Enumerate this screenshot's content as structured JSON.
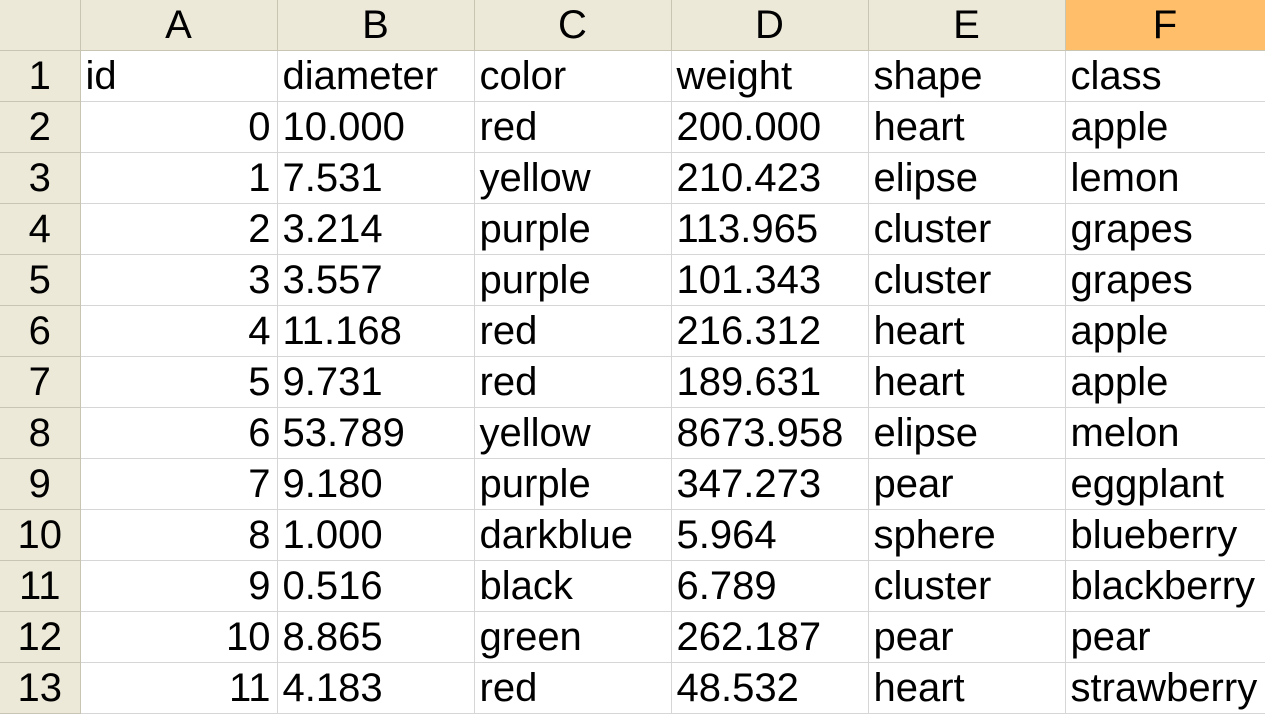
{
  "columns": [
    "A",
    "B",
    "C",
    "D",
    "E",
    "F"
  ],
  "active_column": "F",
  "rows": [
    {
      "n": "1",
      "cells": [
        "id",
        "diameter",
        "color",
        "weight",
        "shape",
        "class"
      ]
    },
    {
      "n": "2",
      "cells": [
        "0",
        "10.000",
        "red",
        "200.000",
        "heart",
        "apple"
      ]
    },
    {
      "n": "3",
      "cells": [
        "1",
        "7.531",
        "yellow",
        "210.423",
        "elipse",
        "lemon"
      ]
    },
    {
      "n": "4",
      "cells": [
        "2",
        "3.214",
        "purple",
        "113.965",
        "cluster",
        "grapes"
      ]
    },
    {
      "n": "5",
      "cells": [
        "3",
        "3.557",
        "purple",
        "101.343",
        "cluster",
        "grapes"
      ]
    },
    {
      "n": "6",
      "cells": [
        "4",
        "11.168",
        "red",
        "216.312",
        "heart",
        "apple"
      ]
    },
    {
      "n": "7",
      "cells": [
        "5",
        "9.731",
        "red",
        "189.631",
        "heart",
        "apple"
      ]
    },
    {
      "n": "8",
      "cells": [
        "6",
        "53.789",
        "yellow",
        "8673.958",
        "elipse",
        "melon"
      ]
    },
    {
      "n": "9",
      "cells": [
        "7",
        "9.180",
        "purple",
        "347.273",
        "pear",
        "eggplant"
      ]
    },
    {
      "n": "10",
      "cells": [
        "8",
        "1.000",
        "darkblue",
        "5.964",
        "sphere",
        "blueberry"
      ]
    },
    {
      "n": "11",
      "cells": [
        "9",
        "0.516",
        "black",
        "6.789",
        "cluster",
        "blackberry"
      ]
    },
    {
      "n": "12",
      "cells": [
        "10",
        "8.865",
        "green",
        "262.187",
        "pear",
        "pear"
      ]
    },
    {
      "n": "13",
      "cells": [
        "11",
        "4.183",
        "red",
        "48.532",
        "heart",
        "strawberry"
      ]
    }
  ],
  "colors": {
    "header_bg": "#ece9d8",
    "active_header_bg": "#ffbe6a",
    "gridline": "#d6d6d6"
  }
}
